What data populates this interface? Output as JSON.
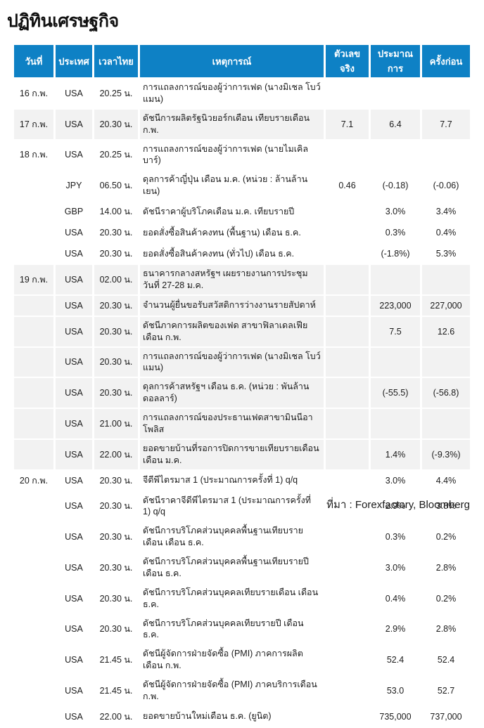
{
  "page": {
    "title": "ปฏิทินเศรษฐกิจ",
    "source": "ที่มา : Forexfactory, Bloomberg"
  },
  "colors": {
    "header_bg": "#0e81c5",
    "stripe_bg": "#f2f2f2",
    "header_text": "#ffffff",
    "body_text": "#1b1b1b"
  },
  "table": {
    "headers": [
      "วันที่",
      "ประเทศ",
      "เวลาไทย",
      "เหตุการณ์",
      "ตัวเลขจริง",
      "ประมาณการ",
      "ครั้งก่อน"
    ],
    "rows": [
      {
        "date": "16 ก.พ.",
        "country": "USA",
        "time": "20.25 น.",
        "event": "การแถลงการณ์ของผู้ว่าการเฟด (นางมิเชล โบว์แมน)",
        "actual": "",
        "forecast": "",
        "previous": "",
        "shaded": false
      },
      {
        "date": "17 ก.พ.",
        "country": "USA",
        "time": "20.30 น.",
        "event": "ดัชนีการผลิตรัฐนิวยอร์กเดือน เทียบรายเดือน ก.พ.",
        "actual": "7.1",
        "forecast": "6.4",
        "previous": "7.7",
        "shaded": true
      },
      {
        "date": "18 ก.พ.",
        "country": "USA",
        "time": "20.25 น.",
        "event": "การแถลงการณ์ของผู้ว่าการเฟด (นายไมเคิล บาร์)",
        "actual": "",
        "forecast": "",
        "previous": "",
        "shaded": false
      },
      {
        "date": "",
        "country": "JPY",
        "time": "06.50 น.",
        "event": "ดุลการค้าญี่ปุ่น เดือน ม.ค. (หน่วย : ล้านล้านเยน)",
        "actual": "0.46",
        "forecast": "(-0.18)",
        "previous": "(-0.06)",
        "shaded": false
      },
      {
        "date": "",
        "country": "GBP",
        "time": "14.00 น.",
        "event": "ดัชนีราคาผู้บริโภคเดือน ม.ค. เทียบรายปี",
        "actual": "",
        "forecast": "3.0%",
        "previous": "3.4%",
        "shaded": false
      },
      {
        "date": "",
        "country": "USA",
        "time": "20.30 น.",
        "event": "ยอดสั่งซื้อสินค้าคงทน (พื้นฐาน) เดือน ธ.ค.",
        "actual": "",
        "forecast": "0.3%",
        "previous": "0.4%",
        "shaded": false
      },
      {
        "date": "",
        "country": "USA",
        "time": "20.30 น.",
        "event": "ยอดสั่งซื้อสินค้าคงทน (ทั่วไป) เดือน ธ.ค.",
        "actual": "",
        "forecast": "(-1.8%)",
        "previous": "5.3%",
        "shaded": false
      },
      {
        "date": "19 ก.พ.",
        "country": "USA",
        "time": "02.00 น.",
        "event": "ธนาคารกลางสหรัฐฯ เผยรายงานการประชุม วันที่ 27-28 ม.ค.",
        "actual": "",
        "forecast": "",
        "previous": "",
        "shaded": true
      },
      {
        "date": "",
        "country": "USA",
        "time": "20.30 น.",
        "event": "จำนวนผู้ยื่นขอรับสวัสดิการว่างงานรายสัปดาห์",
        "actual": "",
        "forecast": "223,000",
        "previous": "227,000",
        "shaded": true
      },
      {
        "date": "",
        "country": "USA",
        "time": "20.30 น.",
        "event": "ดัชนีภาคการผลิตของเฟด สาขาฟิลาเดลเฟียเดือน ก.พ.",
        "actual": "",
        "forecast": "7.5",
        "previous": "12.6",
        "shaded": true
      },
      {
        "date": "",
        "country": "USA",
        "time": "20.30 น.",
        "event": "การแถลงการณ์ของผู้ว่าการเฟด (นางมิเชล โบว์แมน)",
        "actual": "",
        "forecast": "",
        "previous": "",
        "shaded": true
      },
      {
        "date": "",
        "country": "USA",
        "time": "20.30 น.",
        "event": "ดุลการค้าสหรัฐฯ เดือน ธ.ค. (หน่วย : พันล้านดอลลาร์)",
        "actual": "",
        "forecast": "(-55.5)",
        "previous": "(-56.8)",
        "shaded": true
      },
      {
        "date": "",
        "country": "USA",
        "time": "21.00 น.",
        "event": "การแถลงการณ์ของประธานเฟดสาขามินนีอาโพลิส",
        "actual": "",
        "forecast": "",
        "previous": "",
        "shaded": true
      },
      {
        "date": "",
        "country": "USA",
        "time": "22.00 น.",
        "event": "ยอดขายบ้านที่รอการปิดการขายเทียบรายเดือน เดือน ม.ค.",
        "actual": "",
        "forecast": "1.4%",
        "previous": "(-9.3%)",
        "shaded": true
      },
      {
        "date": "20 ก.พ.",
        "country": "USA",
        "time": "20.30 น.",
        "event": "จีดีพีไตรมาส 1 (ประมาณการครั้งที่ 1) q/q",
        "actual": "",
        "forecast": "3.0%",
        "previous": "4.4%",
        "shaded": false
      },
      {
        "date": "",
        "country": "USA",
        "time": "20.30 น.",
        "event": "ดัชนีราคาจีดีพีไตรมาส 1 (ประมาณการครั้งที่ 1) q/q",
        "actual": "",
        "forecast": "2.9%",
        "previous": "3.8%",
        "shaded": false
      },
      {
        "date": "",
        "country": "USA",
        "time": "20.30 น.",
        "event": "ดัชนีการบริโภคส่วนบุคคลพื้นฐานเทียบรายเดือน เดือน ธ.ค.",
        "actual": "",
        "forecast": "0.3%",
        "previous": "0.2%",
        "shaded": false
      },
      {
        "date": "",
        "country": "USA",
        "time": "20.30 น.",
        "event": "ดัชนีการบริโภคส่วนบุคคลพื้นฐานเทียบรายปี เดือน ธ.ค.",
        "actual": "",
        "forecast": "3.0%",
        "previous": "2.8%",
        "shaded": false
      },
      {
        "date": "",
        "country": "USA",
        "time": "20.30 น.",
        "event": "ดัชนีการบริโภคส่วนบุคคลเทียบรายเดือน เดือน ธ.ค.",
        "actual": "",
        "forecast": "0.4%",
        "previous": "0.2%",
        "shaded": false
      },
      {
        "date": "",
        "country": "USA",
        "time": "20.30 น.",
        "event": "ดัชนีการบริโภคส่วนบุคคลเทียบรายปี เดือน ธ.ค.",
        "actual": "",
        "forecast": "2.9%",
        "previous": "2.8%",
        "shaded": false
      },
      {
        "date": "",
        "country": "USA",
        "time": "21.45 น.",
        "event": "ดัชนีผู้จัดการฝ่ายจัดซื้อ (PMI) ภาคการผลิตเดือน ก.พ.",
        "actual": "",
        "forecast": "52.4",
        "previous": "52.4",
        "shaded": false
      },
      {
        "date": "",
        "country": "USA",
        "time": "21.45 น.",
        "event": "ดัชนีผู้จัดการฝ่ายจัดซื้อ (PMI) ภาคบริการเดือน ก.พ.",
        "actual": "",
        "forecast": "53.0",
        "previous": "52.7",
        "shaded": false
      },
      {
        "date": "",
        "country": "USA",
        "time": "22.00 น.",
        "event": "ยอดขายบ้านใหม่เดือน ธ.ค. (ยูนิต)",
        "actual": "",
        "forecast": "735,000",
        "previous": "737,000",
        "shaded": false
      }
    ]
  }
}
